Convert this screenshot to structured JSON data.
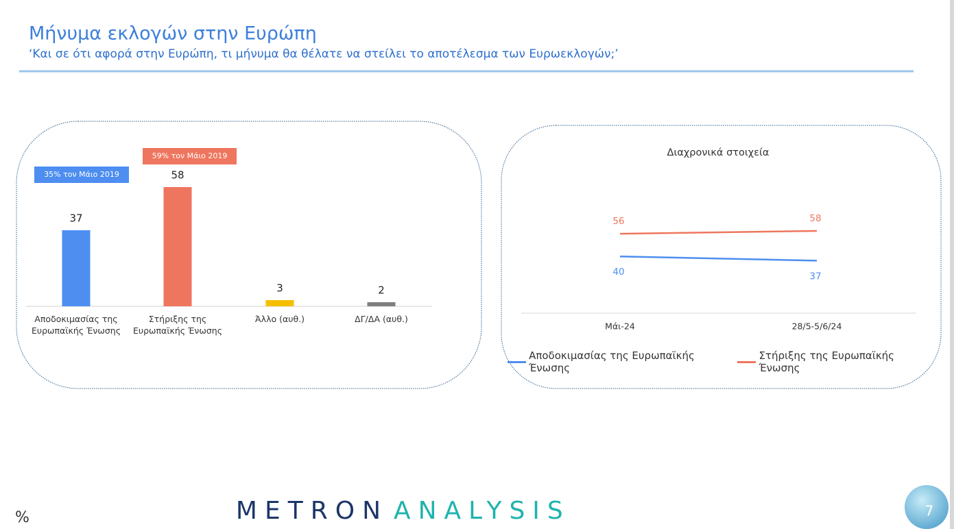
{
  "header": {
    "title": "Μήνυμα εκλογών στην Ευρώπη",
    "subtitle": "‘Και σε ότι αφορά στην Ευρώπη, τι μήνυμα θα θέλατε να στείλει το αποτέλεσμα των Ευρωεκλογών;’"
  },
  "chart_data": [
    {
      "type": "bar",
      "categories": [
        "Αποδοκιμασίας της Ευρωπαϊκής Ένωσης",
        "Στήριξης της Ευρωπαϊκής Ένωσης",
        "Άλλο (αυθ.)",
        "ΔΓ/ΔΑ (αυθ.)"
      ],
      "values": [
        37,
        58,
        3,
        2
      ],
      "colors": [
        "#4d8ef0",
        "#ee765e",
        "#f5bf00",
        "#7f7f7f"
      ],
      "annotations": [
        {
          "text": "35% τον Μάιο 2019",
          "color": "#4d8ef0"
        },
        {
          "text": "59% τον Μάιο 2019",
          "color": "#ee765e"
        }
      ]
    },
    {
      "type": "line",
      "title": "Διαχρονικά στοιχεία",
      "categories": [
        "Μάι-24",
        "28/5-5/6/24"
      ],
      "series": [
        {
          "name": "Αποδοκιμασίας της Ευρωπαϊκής Ένωσης",
          "color": "#4d8ef0",
          "values": [
            40,
            37
          ]
        },
        {
          "name": "Στήριξης της Ευρωπαϊκής Ένωσης",
          "color": "#ee765e",
          "values": [
            56,
            58
          ]
        }
      ]
    }
  ],
  "footer": {
    "logo_left": "METRON",
    "logo_right": "ANALYSIS",
    "page": "7",
    "unit": "%"
  }
}
